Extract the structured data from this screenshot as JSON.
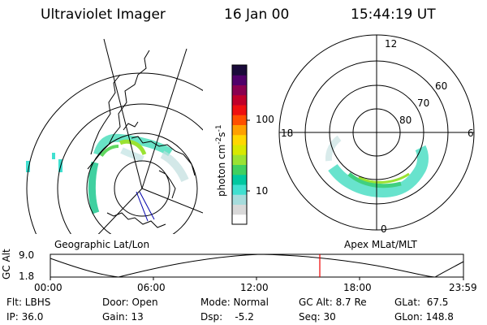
{
  "header": {
    "title": "Ultraviolet Imager",
    "date": "16 Jan 00",
    "time": "15:44:19 UT"
  },
  "colorbar": {
    "unit": "photon cm",
    "unit_exp1": "-2",
    "unit_s": "s",
    "unit_exp2": "-1",
    "ticks": [
      "100",
      "10"
    ],
    "colors": [
      "#ffffff",
      "#d9d9d9",
      "#a6dcdc",
      "#40e0d0",
      "#00c8a0",
      "#40d060",
      "#9ae232",
      "#d8e800",
      "#ffd700",
      "#ffa000",
      "#ff5000",
      "#ee1010",
      "#c0002a",
      "#8a0050",
      "#50006a",
      "#1a0a3a"
    ]
  },
  "left_panel": {
    "caption": "Geographic Lat/Lon"
  },
  "right_panel": {
    "caption": "Apex MLat/MLT",
    "mlt_labels": {
      "top": "12",
      "left": "18",
      "right": "6",
      "bottom": "0"
    },
    "lat_labels": [
      "60",
      "70",
      "80"
    ]
  },
  "orbit_plot": {
    "ylabel": "GC Alt",
    "y_ticks": [
      "9.0",
      "1.8"
    ],
    "x_ticks": [
      "00:00",
      "06:00",
      "12:00",
      "18:00",
      "23:59"
    ],
    "marker_time": "15:44"
  },
  "footer": {
    "flt": "Flt: LBHS",
    "ip": "IP: 36.0",
    "door": "Door: Open",
    "gain": "Gain: 13",
    "mode": "Mode: Normal",
    "dsp": "Dsp:    -5.2",
    "gc_alt": "GC Alt: 8.7 Re",
    "seq": "Seq: 30",
    "glat": "GLat:  67.5",
    "glon": "GLon: 148.8"
  }
}
